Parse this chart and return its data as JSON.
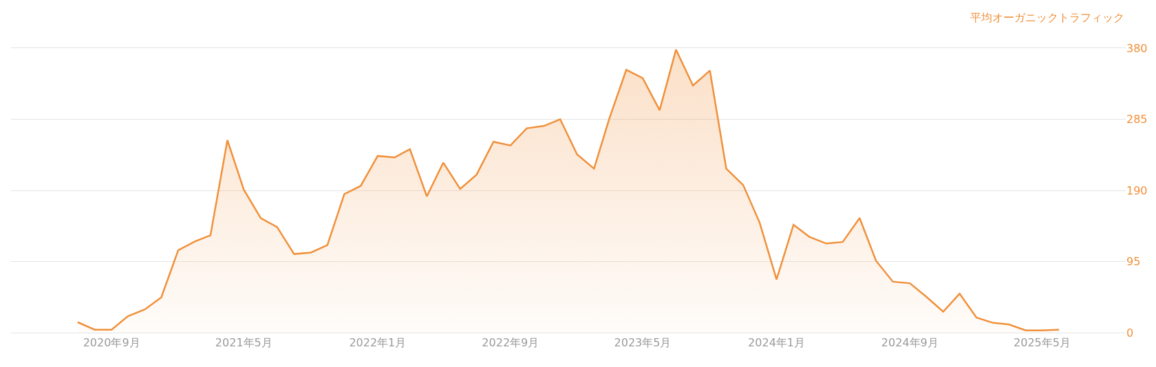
{
  "chart_data": {
    "type": "area",
    "ylabel": "平均オーガニックトラフィック",
    "x": [
      "2020-07",
      "2020-08",
      "2020-09",
      "2020-10",
      "2020-11",
      "2020-12",
      "2021-01",
      "2021-02",
      "2021-03",
      "2021-04",
      "2021-05",
      "2021-06",
      "2021-07",
      "2021-08",
      "2021-09",
      "2021-10",
      "2021-11",
      "2021-12",
      "2022-01",
      "2022-02",
      "2022-03",
      "2022-04",
      "2022-05",
      "2022-06",
      "2022-07",
      "2022-08",
      "2022-09",
      "2022-10",
      "2022-11",
      "2022-12",
      "2023-01",
      "2023-02",
      "2023-03",
      "2023-04",
      "2023-05",
      "2023-06",
      "2023-07",
      "2023-08",
      "2023-09",
      "2023-10",
      "2023-11",
      "2023-12",
      "2024-01",
      "2024-02",
      "2024-03",
      "2024-04",
      "2024-05",
      "2024-06",
      "2024-07",
      "2024-08",
      "2024-09",
      "2024-10",
      "2024-11",
      "2024-12",
      "2025-01",
      "2025-02",
      "2025-03",
      "2025-04",
      "2025-05",
      "2025-06"
    ],
    "series": [
      {
        "color": "#f0903a",
        "values": [
          14,
          4,
          4,
          22,
          31,
          47,
          110,
          122,
          130,
          257,
          191,
          153,
          141,
          105,
          107,
          117,
          185,
          196,
          236,
          234,
          245,
          182,
          227,
          192,
          211,
          255,
          250,
          273,
          276,
          285,
          238,
          219,
          286,
          351,
          340,
          297,
          378,
          330,
          350,
          219,
          197,
          147,
          71,
          144,
          128,
          119,
          121,
          153,
          96,
          68,
          66,
          48,
          28,
          52,
          20,
          13,
          11,
          3,
          3,
          4
        ]
      }
    ],
    "xlim": [
      "2020-03",
      "2025-10"
    ],
    "xticks": [
      {
        "value": "2020-09",
        "label": "2020年9月"
      },
      {
        "value": "2021-05",
        "label": "2021年5月"
      },
      {
        "value": "2022-01",
        "label": "2022年1月"
      },
      {
        "value": "2022-09",
        "label": "2022年9月"
      },
      {
        "value": "2023-05",
        "label": "2023年5月"
      },
      {
        "value": "2024-01",
        "label": "2024年1月"
      },
      {
        "value": "2024-09",
        "label": "2024年9月"
      },
      {
        "value": "2025-05",
        "label": "2025年5月"
      }
    ],
    "ylim": [
      0,
      380
    ],
    "yticks": [
      0,
      95,
      190,
      285,
      380
    ],
    "grid": "y",
    "marker": "none",
    "line_style": "solid"
  }
}
